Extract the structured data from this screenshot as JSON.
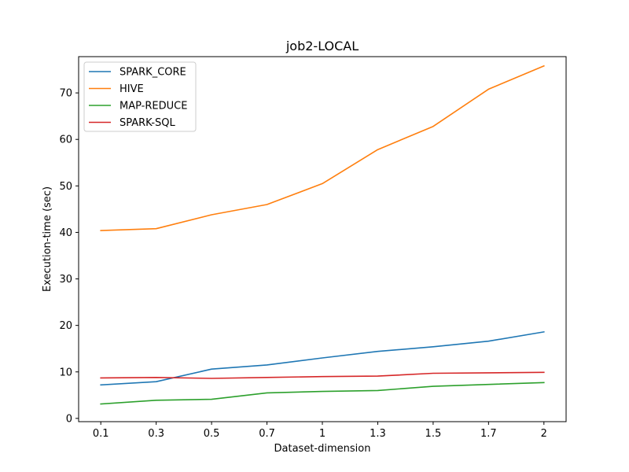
{
  "chart_data": {
    "type": "line",
    "title": "job2-LOCAL",
    "xlabel": "Dataset-dimension",
    "ylabel": "Execution-time (sec)",
    "categories": [
      "0.1",
      "0.3",
      "0.5",
      "0.7",
      "1",
      "1.3",
      "1.5",
      "1.7",
      "2"
    ],
    "yticks": [
      0,
      10,
      20,
      30,
      40,
      50,
      60,
      70
    ],
    "ylim": [
      -0.7,
      77.8
    ],
    "grid": false,
    "legend_position": "upper-left",
    "series": [
      {
        "name": "SPARK_CORE",
        "color": "#1f77b4",
        "values": [
          7.2,
          7.9,
          10.6,
          11.5,
          13.0,
          14.4,
          15.4,
          16.6,
          18.6
        ]
      },
      {
        "name": "HIVE",
        "color": "#ff7f0e",
        "values": [
          40.4,
          40.8,
          43.8,
          46.0,
          50.5,
          57.8,
          62.8,
          70.8,
          75.8
        ]
      },
      {
        "name": "MAP-REDUCE",
        "color": "#2ca02c",
        "values": [
          3.1,
          3.9,
          4.1,
          5.5,
          5.8,
          6.0,
          6.9,
          7.3,
          7.7
        ]
      },
      {
        "name": "SPARK-SQL",
        "color": "#d62728",
        "values": [
          8.7,
          8.8,
          8.6,
          8.8,
          9.0,
          9.1,
          9.7,
          9.8,
          9.9
        ]
      }
    ]
  }
}
